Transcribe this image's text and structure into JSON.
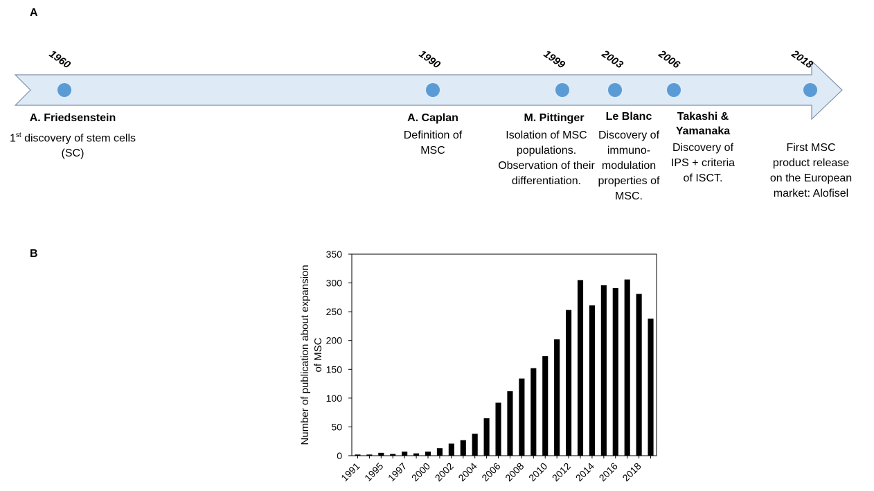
{
  "panels": {
    "a_label": "A",
    "b_label": "B"
  },
  "timeline": {
    "accent_color": "#5b9bd5",
    "arrow_fill": "#deebf7",
    "events": [
      {
        "year": "1960",
        "title": "A. Friedsenstein",
        "desc_prefix": "1",
        "desc_sup": "st",
        "desc": " discovery of stem cells (SC)"
      },
      {
        "year": "1990",
        "title": "A. Caplan",
        "desc": "Definition of MSC"
      },
      {
        "year": "1999",
        "title": "M. Pittinger",
        "desc": "Isolation of MSC populations. Observation of their differentiation."
      },
      {
        "year": "2003",
        "title": "Le Blanc",
        "desc": "Discovery of immuno-modulation properties of MSC."
      },
      {
        "year": "2006",
        "title": "Takashi & Yamanaka",
        "desc": "Discovery of IPS + criteria of ISCT."
      },
      {
        "year": "2018",
        "title": "",
        "desc": "First MSC product release on the European market: Alofisel"
      }
    ]
  },
  "chart_data": {
    "type": "bar",
    "title": "",
    "xlabel": "",
    "ylabel": "Number of publication about expansion of MSC",
    "ylim": [
      0,
      350
    ],
    "yticks": [
      0,
      50,
      100,
      150,
      200,
      250,
      300,
      350
    ],
    "categories": [
      "1991",
      "1994",
      "1995",
      "1996",
      "1997",
      "1998",
      "2000",
      "2001",
      "2002",
      "2003",
      "2004",
      "2005",
      "2006",
      "2007",
      "2008",
      "2009",
      "2010",
      "2011",
      "2012",
      "2013",
      "2014",
      "2015",
      "2016",
      "2017",
      "2018",
      "2019"
    ],
    "visible_tick_labels": [
      "1991",
      "1995",
      "1997",
      "2000",
      "2002",
      "2004",
      "2006",
      "2008",
      "2010",
      "2012",
      "2014",
      "2016",
      "2018"
    ],
    "values": [
      2,
      2,
      5,
      3,
      7,
      4,
      7,
      13,
      21,
      27,
      38,
      65,
      92,
      112,
      134,
      152,
      173,
      202,
      253,
      305,
      261,
      296,
      291,
      306,
      281,
      238
    ],
    "bar_color": "#000000",
    "grid": false
  }
}
